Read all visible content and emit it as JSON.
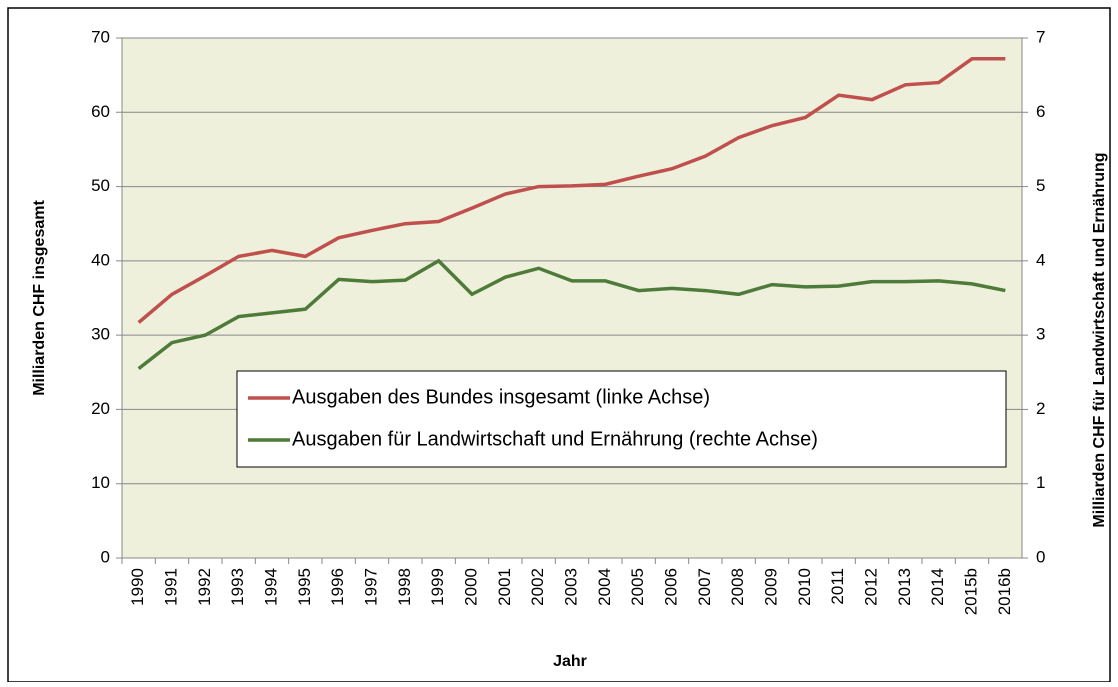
{
  "chart_data": {
    "type": "line",
    "x_label": "Jahr",
    "y_label": "Milliarden CHF insgesamt",
    "y2_label": "Milliarden CHF für Landwirtschaft  und Ernährung",
    "categories": [
      "1990",
      "1991",
      "1992",
      "1993",
      "1994",
      "1995",
      "1996",
      "1997",
      "1998",
      "1999",
      "2000",
      "2001",
      "2002",
      "2003",
      "2004",
      "2005",
      "2006",
      "2007",
      "2008",
      "2009",
      "2010",
      "2011",
      "2012",
      "2013",
      "2014",
      "2015b",
      "2016b"
    ],
    "series": [
      {
        "name": "Ausgaben des Bundes insgesamt (linke Achse)",
        "color": "#c0504d",
        "values": [
          31.7,
          35.5,
          38.0,
          40.6,
          41.4,
          40.6,
          43.1,
          44.1,
          45.0,
          45.3,
          47.1,
          49.0,
          50.0,
          50.1,
          50.3,
          51.4,
          52.4,
          54.1,
          56.6,
          58.2,
          59.3,
          62.3,
          61.7,
          63.7,
          64.0,
          67.2,
          67.2
        ]
      },
      {
        "name": "Ausgaben für Landwirtschaft und Ernährung (rechte Achse)",
        "color": "#4f7b3a",
        "axis": "y2",
        "values": [
          2.55,
          2.9,
          3.0,
          3.25,
          3.3,
          3.35,
          3.75,
          3.72,
          3.74,
          4.0,
          3.55,
          3.78,
          3.9,
          3.73,
          3.73,
          3.6,
          3.63,
          3.6,
          3.55,
          3.68,
          3.65,
          3.66,
          3.72,
          3.72,
          3.73,
          3.69,
          3.6
        ]
      }
    ],
    "ylim": [
      0,
      70
    ],
    "yticks": [
      0,
      10,
      20,
      30,
      40,
      50,
      60,
      70
    ],
    "y2lim": [
      0,
      7
    ],
    "y2ticks": [
      0,
      1,
      2,
      3,
      4,
      5,
      6,
      7
    ],
    "plot_background": "#eef0dc",
    "legend": "center"
  }
}
